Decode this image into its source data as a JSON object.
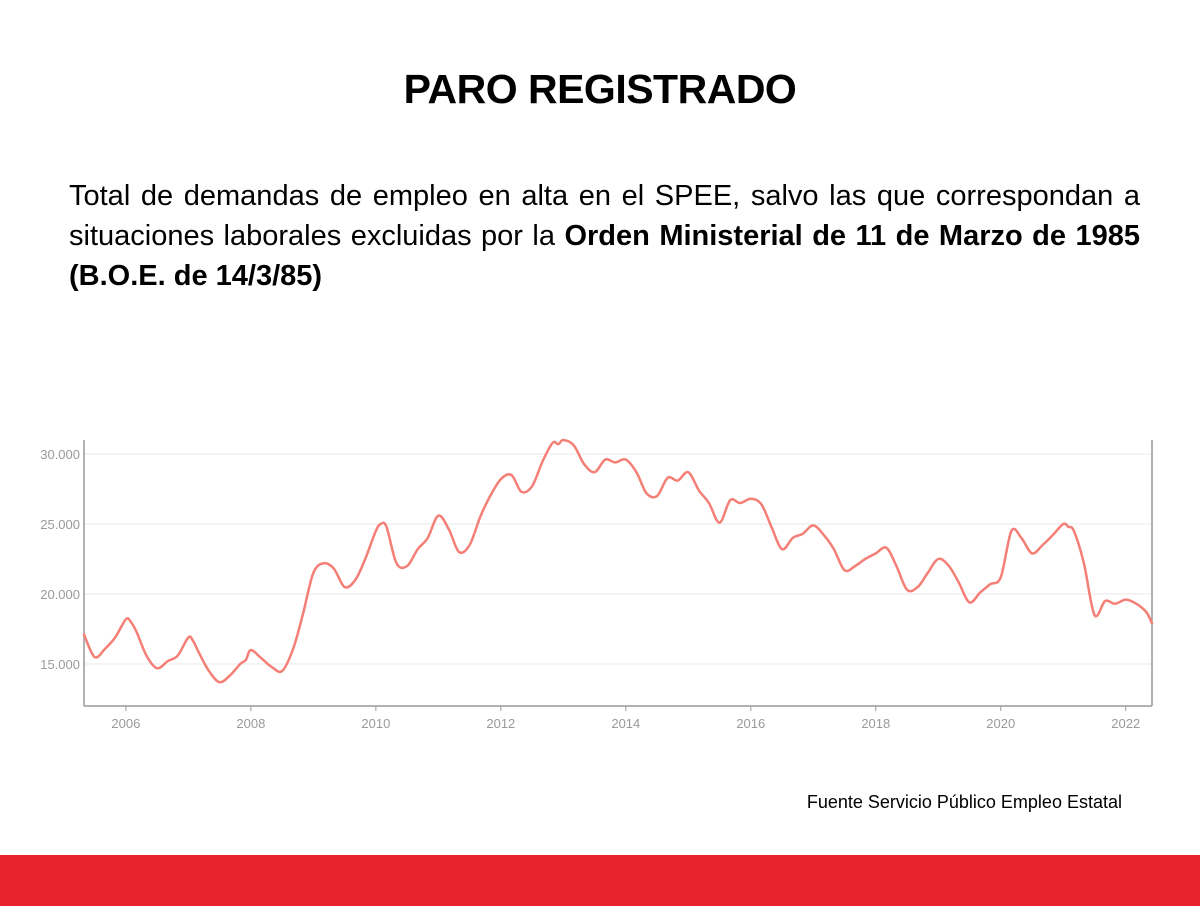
{
  "slide": {
    "title": "PARO REGISTRADO",
    "description_plain": "Total de demandas de empleo en alta en el SPEE, salvo las que correspondan a situaciones laborales excluidas por la ",
    "description_bold": "Orden Ministerial de 11 de Marzo de 1985 (B.O.E. de 14/3/85)",
    "source": "Fuente Servicio Público Empleo Estatal",
    "accent_color": "#e8232e"
  },
  "chart_data": {
    "type": "line",
    "title": "",
    "xlabel": "",
    "ylabel": "",
    "xlim": [
      2005.33,
      2022.42
    ],
    "ylim": [
      12000,
      31000
    ],
    "y_ticks": [
      15000,
      20000,
      25000,
      30000
    ],
    "y_tick_labels": [
      "15.000",
      "20.000",
      "25.000",
      "30.000"
    ],
    "x_ticks": [
      2006,
      2008,
      2010,
      2012,
      2014,
      2016,
      2018,
      2020,
      2022
    ],
    "x_tick_labels": [
      "2006",
      "2008",
      "2010",
      "2012",
      "2014",
      "2016",
      "2018",
      "2020",
      "2022"
    ],
    "grid": true,
    "line_color": "#f47f77",
    "series": [
      {
        "x": [
          2005.33,
          2005.5,
          2005.67,
          2005.83,
          2006.0,
          2006.08,
          2006.17,
          2006.33,
          2006.5,
          2006.67,
          2006.83,
          2007.0,
          2007.08,
          2007.17,
          2007.33,
          2007.5,
          2007.67,
          2007.83,
          2007.92,
          2008.0,
          2008.17,
          2008.33,
          2008.5,
          2008.67,
          2008.83,
          2009.0,
          2009.17,
          2009.33,
          2009.5,
          2009.67,
          2009.83,
          2010.0,
          2010.08,
          2010.17,
          2010.33,
          2010.5,
          2010.67,
          2010.83,
          2011.0,
          2011.17,
          2011.33,
          2011.5,
          2011.67,
          2011.83,
          2012.0,
          2012.17,
          2012.33,
          2012.5,
          2012.67,
          2012.83,
          2012.92,
          2013.0,
          2013.17,
          2013.33,
          2013.5,
          2013.67,
          2013.83,
          2014.0,
          2014.17,
          2014.33,
          2014.5,
          2014.67,
          2014.83,
          2015.0,
          2015.17,
          2015.33,
          2015.5,
          2015.67,
          2015.83,
          2016.0,
          2016.17,
          2016.33,
          2016.5,
          2016.67,
          2016.83,
          2017.0,
          2017.17,
          2017.33,
          2017.5,
          2017.67,
          2017.83,
          2018.0,
          2018.17,
          2018.33,
          2018.5,
          2018.67,
          2018.83,
          2019.0,
          2019.17,
          2019.33,
          2019.5,
          2019.67,
          2019.83,
          2020.0,
          2020.17,
          2020.33,
          2020.5,
          2020.67,
          2020.83,
          2021.0,
          2021.08,
          2021.17,
          2021.33,
          2021.5,
          2021.67,
          2021.83,
          2022.0,
          2022.17,
          2022.33,
          2022.42
        ],
        "y": [
          17100,
          15500,
          16100,
          16900,
          18200,
          18000,
          17300,
          15600,
          14700,
          15200,
          15600,
          16900,
          16600,
          15800,
          14500,
          13700,
          14200,
          15000,
          15300,
          16000,
          15400,
          14800,
          14500,
          16000,
          18500,
          21500,
          22200,
          21800,
          20500,
          21000,
          22500,
          24500,
          25000,
          24800,
          22200,
          22000,
          23200,
          24000,
          25600,
          24600,
          23000,
          23500,
          25500,
          27000,
          28200,
          28500,
          27300,
          27700,
          29500,
          30800,
          30700,
          31000,
          30600,
          29300,
          28700,
          29600,
          29400,
          29600,
          28700,
          27200,
          27000,
          28300,
          28100,
          28700,
          27400,
          26500,
          25100,
          26700,
          26500,
          26800,
          26400,
          24800,
          23200,
          24000,
          24300,
          24900,
          24200,
          23200,
          21700,
          22000,
          22500,
          22900,
          23300,
          22000,
          20300,
          20500,
          21500,
          22500,
          22000,
          20800,
          19400,
          20100,
          20700,
          21200,
          24500,
          24000,
          22900,
          23500,
          24200,
          25000,
          24800,
          24500,
          22200,
          18500,
          19500,
          19300,
          19600,
          19300,
          18700,
          17900
        ]
      }
    ]
  }
}
